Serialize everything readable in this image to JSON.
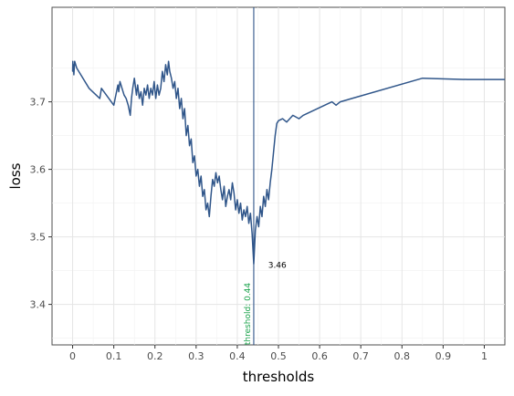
{
  "chart_data": {
    "type": "line",
    "title": "",
    "xlabel": "thresholds",
    "ylabel": "loss",
    "xlim": [
      -0.05,
      1.05
    ],
    "ylim": [
      3.34,
      3.84
    ],
    "xticks": [
      0,
      0.1,
      0.2,
      0.3,
      0.4,
      0.5,
      0.6,
      0.7,
      0.8,
      0.9,
      1
    ],
    "xtick_labels": [
      "0",
      "0.1",
      "0.2",
      "0.3",
      "0.4",
      "0.5",
      "0.6",
      "0.7",
      "0.8",
      "0.9",
      "1"
    ],
    "yticks": [
      3.4,
      3.5,
      3.6,
      3.7
    ],
    "ytick_labels": [
      "3.4",
      "3.5",
      "3.6",
      "3.7"
    ],
    "grid": true,
    "legend": "none",
    "series": [
      {
        "color": "#30568a",
        "x": [
          0.0,
          0.0005,
          0.001,
          0.002,
          0.003,
          0.005,
          0.01,
          0.02,
          0.04,
          0.066,
          0.07,
          0.1,
          0.11,
          0.112,
          0.115,
          0.12,
          0.125,
          0.13,
          0.135,
          0.14,
          0.143,
          0.146,
          0.15,
          0.155,
          0.158,
          0.162,
          0.166,
          0.17,
          0.174,
          0.178,
          0.182,
          0.186,
          0.19,
          0.194,
          0.198,
          0.202,
          0.206,
          0.21,
          0.214,
          0.218,
          0.222,
          0.226,
          0.23,
          0.233,
          0.236,
          0.24,
          0.244,
          0.248,
          0.252,
          0.256,
          0.26,
          0.264,
          0.268,
          0.272,
          0.276,
          0.28,
          0.284,
          0.288,
          0.292,
          0.296,
          0.3,
          0.304,
          0.308,
          0.312,
          0.316,
          0.32,
          0.324,
          0.328,
          0.332,
          0.336,
          0.34,
          0.344,
          0.348,
          0.352,
          0.356,
          0.36,
          0.364,
          0.368,
          0.372,
          0.376,
          0.38,
          0.384,
          0.388,
          0.392,
          0.396,
          0.4,
          0.404,
          0.408,
          0.412,
          0.416,
          0.42,
          0.424,
          0.428,
          0.432,
          0.436,
          0.44,
          0.444,
          0.448,
          0.452,
          0.456,
          0.46,
          0.464,
          0.468,
          0.472,
          0.476,
          0.48,
          0.484,
          0.488,
          0.492,
          0.496,
          0.5,
          0.51,
          0.52,
          0.535,
          0.55,
          0.56,
          0.63,
          0.64,
          0.65,
          0.85,
          0.96,
          1.05
        ],
        "y": [
          3.745,
          3.76,
          3.745,
          3.755,
          3.74,
          3.76,
          3.75,
          3.74,
          3.72,
          3.705,
          3.72,
          3.695,
          3.725,
          3.715,
          3.73,
          3.72,
          3.71,
          3.705,
          3.695,
          3.68,
          3.705,
          3.72,
          3.735,
          3.71,
          3.725,
          3.705,
          3.715,
          3.695,
          3.72,
          3.71,
          3.725,
          3.705,
          3.72,
          3.71,
          3.73,
          3.705,
          3.725,
          3.71,
          3.72,
          3.745,
          3.73,
          3.755,
          3.74,
          3.76,
          3.745,
          3.735,
          3.72,
          3.73,
          3.705,
          3.72,
          3.69,
          3.705,
          3.675,
          3.69,
          3.65,
          3.665,
          3.635,
          3.645,
          3.61,
          3.62,
          3.59,
          3.6,
          3.575,
          3.59,
          3.56,
          3.57,
          3.54,
          3.55,
          3.53,
          3.56,
          3.585,
          3.575,
          3.595,
          3.58,
          3.59,
          3.57,
          3.555,
          3.575,
          3.545,
          3.56,
          3.57,
          3.555,
          3.58,
          3.565,
          3.54,
          3.555,
          3.535,
          3.55,
          3.525,
          3.54,
          3.53,
          3.545,
          3.52,
          3.535,
          3.505,
          3.46,
          3.51,
          3.53,
          3.515,
          3.545,
          3.53,
          3.56,
          3.545,
          3.57,
          3.555,
          3.58,
          3.6,
          3.625,
          3.65,
          3.668,
          3.672,
          3.675,
          3.67,
          3.68,
          3.675,
          3.68,
          3.7,
          3.695,
          3.7,
          3.735,
          3.733,
          3.733
        ]
      }
    ],
    "vline": {
      "x": 0.44,
      "label": "threshold: 0.44",
      "line_color": "#30568a",
      "label_color": "#19a24a"
    },
    "annotations": [
      {
        "text": "3.46",
        "x": 0.475,
        "y": 3.458
      }
    ]
  }
}
